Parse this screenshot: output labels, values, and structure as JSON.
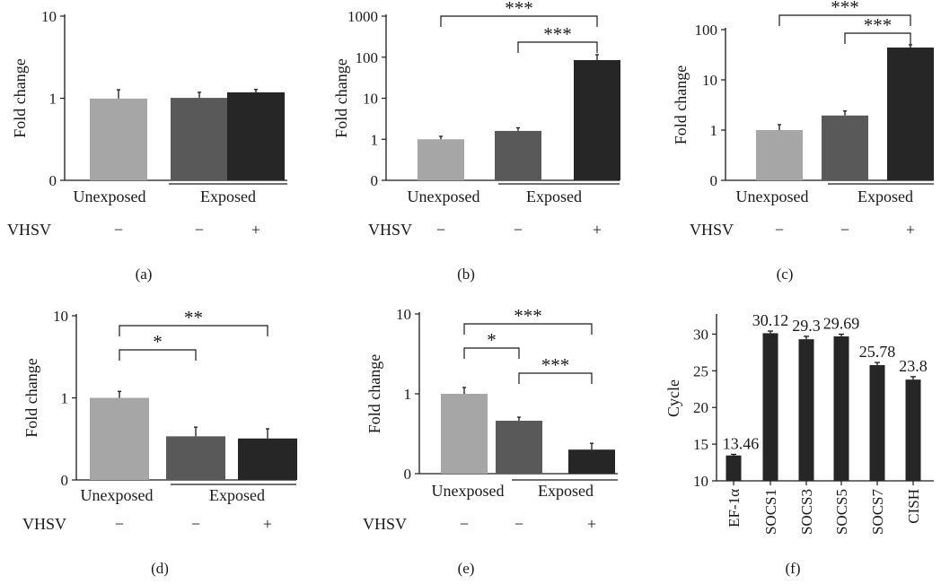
{
  "colors": {
    "unexposed": "#a6a6a6",
    "exposed_minus": "#595959",
    "exposed_plus": "#262626",
    "axis": "#1a1a1a"
  },
  "chart_data": [
    {
      "id": "a",
      "panel_label": "(a)",
      "type": "bar",
      "scale": "log",
      "ylabel": "Fold change",
      "ylim": [
        0.1,
        10
      ],
      "ytick_values": [
        0.1,
        1,
        10
      ],
      "ytick_labels": [
        "0",
        "1",
        "10"
      ],
      "categories": [
        "Unexposed",
        "Exposed -",
        "Exposed +"
      ],
      "values": [
        0.99,
        1.01,
        1.18
      ],
      "errors": [
        0.28,
        0.17,
        0.1
      ],
      "group_labels": [
        "Unexposed",
        "Exposed"
      ],
      "vhsv_label": "VHSV",
      "vhsv_values": [
        "−",
        "−",
        "+"
      ],
      "significance": []
    },
    {
      "id": "b",
      "panel_label": "(b)",
      "type": "bar",
      "scale": "log",
      "ylabel": "Fold change",
      "ylim": [
        0.1,
        1000
      ],
      "ytick_values": [
        0.1,
        1,
        10,
        100,
        1000
      ],
      "ytick_labels": [
        "0",
        "1",
        "10",
        "100",
        "1000"
      ],
      "categories": [
        "Unexposed",
        "Exposed -",
        "Exposed +"
      ],
      "values": [
        1.0,
        1.6,
        85
      ],
      "errors": [
        0.18,
        0.3,
        30
      ],
      "group_labels": [
        "Unexposed",
        "Exposed"
      ],
      "vhsv_label": "VHSV",
      "vhsv_values": [
        "−",
        "−",
        "+"
      ],
      "significance": [
        {
          "from": 0,
          "to": 2,
          "label": "***",
          "level": 0
        },
        {
          "from": 1,
          "to": 2,
          "label": "***",
          "level": 1
        }
      ]
    },
    {
      "id": "c",
      "panel_label": "(c)",
      "type": "bar",
      "scale": "log",
      "ylabel": "Fold change",
      "ylim": [
        0.1,
        100
      ],
      "ytick_values": [
        0.1,
        1,
        10,
        100
      ],
      "ytick_labels": [
        "0",
        "1",
        "10",
        "100"
      ],
      "categories": [
        "Unexposed",
        "Exposed -",
        "Exposed +"
      ],
      "values": [
        1.0,
        1.95,
        44
      ],
      "errors": [
        0.28,
        0.45,
        6
      ],
      "group_labels": [
        "Unexposed",
        "Exposed"
      ],
      "vhsv_label": "VHSV",
      "vhsv_values": [
        "−",
        "−",
        "+"
      ],
      "significance": [
        {
          "from": 0,
          "to": 2,
          "label": "***",
          "level": 0
        },
        {
          "from": 1,
          "to": 2,
          "label": "***",
          "level": 1
        }
      ]
    },
    {
      "id": "d",
      "panel_label": "(d)",
      "type": "bar",
      "scale": "log",
      "ylabel": "Fold change",
      "ylim": [
        0.1,
        10
      ],
      "ytick_values": [
        0.1,
        1,
        10
      ],
      "ytick_labels": [
        "0",
        "1",
        "10"
      ],
      "categories": [
        "Unexposed",
        "Exposed -",
        "Exposed +"
      ],
      "values": [
        1.0,
        0.34,
        0.32
      ],
      "errors": [
        0.2,
        0.1,
        0.1
      ],
      "group_labels": [
        "Unexposed",
        "Exposed"
      ],
      "vhsv_label": "VHSV",
      "vhsv_values": [
        "−",
        "−",
        "+"
      ],
      "significance": [
        {
          "from": 0,
          "to": 2,
          "label": "**",
          "level": 0
        },
        {
          "from": 0,
          "to": 1,
          "label": "*",
          "level": 1
        }
      ]
    },
    {
      "id": "e",
      "panel_label": "(e)",
      "type": "bar",
      "scale": "log",
      "ylabel": "Fold change",
      "ylim": [
        0.1,
        10
      ],
      "ytick_values": [
        0.1,
        1,
        10
      ],
      "ytick_labels": [
        "0",
        "1",
        "10"
      ],
      "categories": [
        "Unexposed",
        "Exposed -",
        "Exposed +"
      ],
      "values": [
        1.0,
        0.46,
        0.2
      ],
      "errors": [
        0.2,
        0.05,
        0.04
      ],
      "group_labels": [
        "Unexposed",
        "Exposed"
      ],
      "vhsv_label": "VHSV",
      "vhsv_values": [
        "−",
        "−",
        "+"
      ],
      "significance": [
        {
          "from": 0,
          "to": 2,
          "label": "***",
          "level": 0
        },
        {
          "from": 0,
          "to": 1,
          "label": "*",
          "level": 1
        },
        {
          "from": 1,
          "to": 2,
          "label": "***",
          "level": 2
        }
      ]
    },
    {
      "id": "f",
      "panel_label": "(f)",
      "type": "bar",
      "scale": "linear",
      "ylabel": "Cycle",
      "ylim": [
        10,
        32.5
      ],
      "ytick_values": [
        10,
        15,
        20,
        25,
        30
      ],
      "ytick_labels": [
        "10",
        "15",
        "20",
        "25",
        "30"
      ],
      "categories": [
        "EF-1α",
        "SOCS1",
        "SOCS3",
        "SOCS5",
        "SOCS7",
        "CISH"
      ],
      "values": [
        13.46,
        30.12,
        29.3,
        29.69,
        25.78,
        23.8
      ],
      "errors": [
        0.15,
        0.3,
        0.4,
        0.3,
        0.35,
        0.4
      ],
      "data_labels": [
        "13.46",
        "30.12",
        "29.3",
        "29.69",
        "25.78",
        "23.8"
      ]
    }
  ]
}
